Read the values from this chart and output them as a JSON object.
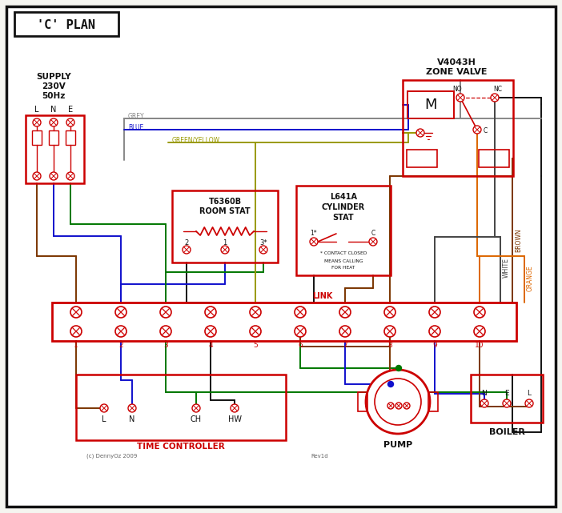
{
  "bg": "#f5f5f0",
  "red": "#cc0000",
  "black": "#111111",
  "blue": "#1010cc",
  "green": "#007700",
  "grey": "#888888",
  "brown": "#7B3500",
  "orange": "#DD6600",
  "gy": "#999900",
  "white_w": "#444444",
  "title": "'C' PLAN",
  "supply_label": [
    "SUPPLY",
    "230V",
    "50Hz"
  ],
  "zone_valve_label": [
    "V4043H",
    "ZONE VALVE"
  ],
  "pump_label": "PUMP",
  "boiler_label": "BOILER",
  "time_ctrl_label": "TIME CONTROLLER",
  "room_stat_label": [
    "T6360B",
    "ROOM STAT"
  ],
  "cyl_stat_label": [
    "L641A",
    "CYLINDER",
    "STAT"
  ]
}
